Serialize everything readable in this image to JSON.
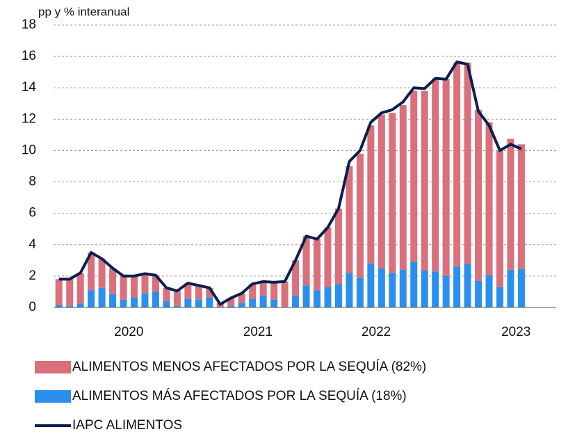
{
  "chart_data": {
    "type": "bar",
    "stacked": true,
    "y_label": "pp y % interanual",
    "categories": [
      null,
      null,
      null,
      null,
      null,
      null,
      "2020",
      null,
      null,
      null,
      null,
      null,
      null,
      null,
      null,
      null,
      null,
      null,
      "2021",
      null,
      null,
      null,
      null,
      null,
      null,
      null,
      null,
      null,
      null,
      "2022",
      null,
      null,
      null,
      null,
      null,
      null,
      null,
      null,
      null,
      null,
      null,
      null,
      "2023",
      null
    ],
    "series": [
      {
        "name": "ALIMENTOS MENOS AFECTADOS POR LA SEQUÍA (82%)",
        "type": "bar",
        "color": "#d9707c",
        "values": [
          1.65,
          1.7,
          1.95,
          2.4,
          1.85,
          1.65,
          1.5,
          1.35,
          1.25,
          1.05,
          0.85,
          0.95,
          1.0,
          0.9,
          0.6,
          0.25,
          0.5,
          0.6,
          0.95,
          0.9,
          1.1,
          1.6,
          2.25,
          3.15,
          3.25,
          3.8,
          4.8,
          6.8,
          7.9,
          8.8,
          9.8,
          10.2,
          10.5,
          10.9,
          11.45,
          12.3,
          12.55,
          13.0,
          12.8,
          10.9,
          9.75,
          8.7,
          8.35,
          7.95
        ]
      },
      {
        "name": "ALIMENTOS MÁS AFECTADOS POR LA SEQUÍA (18%)",
        "type": "bar",
        "color": "#2b8fef",
        "values": [
          0.15,
          0.1,
          0.25,
          1.1,
          1.25,
          0.85,
          0.5,
          0.65,
          0.9,
          1.0,
          0.4,
          0.1,
          0.55,
          0.5,
          0.65,
          0.05,
          0.1,
          0.3,
          0.55,
          0.75,
          0.5,
          0.05,
          0.75,
          1.4,
          1.1,
          1.3,
          1.5,
          2.2,
          1.9,
          2.8,
          2.5,
          2.2,
          2.4,
          2.9,
          2.35,
          2.3,
          2.0,
          2.6,
          2.8,
          1.7,
          2.05,
          1.3,
          2.4,
          2.45
        ]
      },
      {
        "name": "IAPC ALIMENTOS",
        "type": "line",
        "color": "#0a1f4f",
        "values": [
          1.8,
          1.8,
          2.2,
          3.5,
          3.1,
          2.5,
          2.0,
          2.0,
          2.15,
          2.05,
          1.25,
          1.05,
          1.55,
          1.4,
          1.25,
          0.2,
          0.6,
          0.9,
          1.5,
          1.65,
          1.6,
          1.65,
          3.0,
          4.55,
          4.35,
          5.1,
          6.3,
          9.3,
          10.0,
          11.8,
          12.4,
          12.6,
          13.1,
          14.0,
          13.95,
          14.6,
          14.55,
          15.65,
          15.5,
          12.5,
          11.6,
          10.0,
          10.4,
          10.1
        ]
      }
    ],
    "ylim": [
      0,
      18
    ],
    "yticks": [
      0,
      2,
      4,
      6,
      8,
      10,
      12,
      14,
      16,
      18
    ],
    "grid": true
  }
}
